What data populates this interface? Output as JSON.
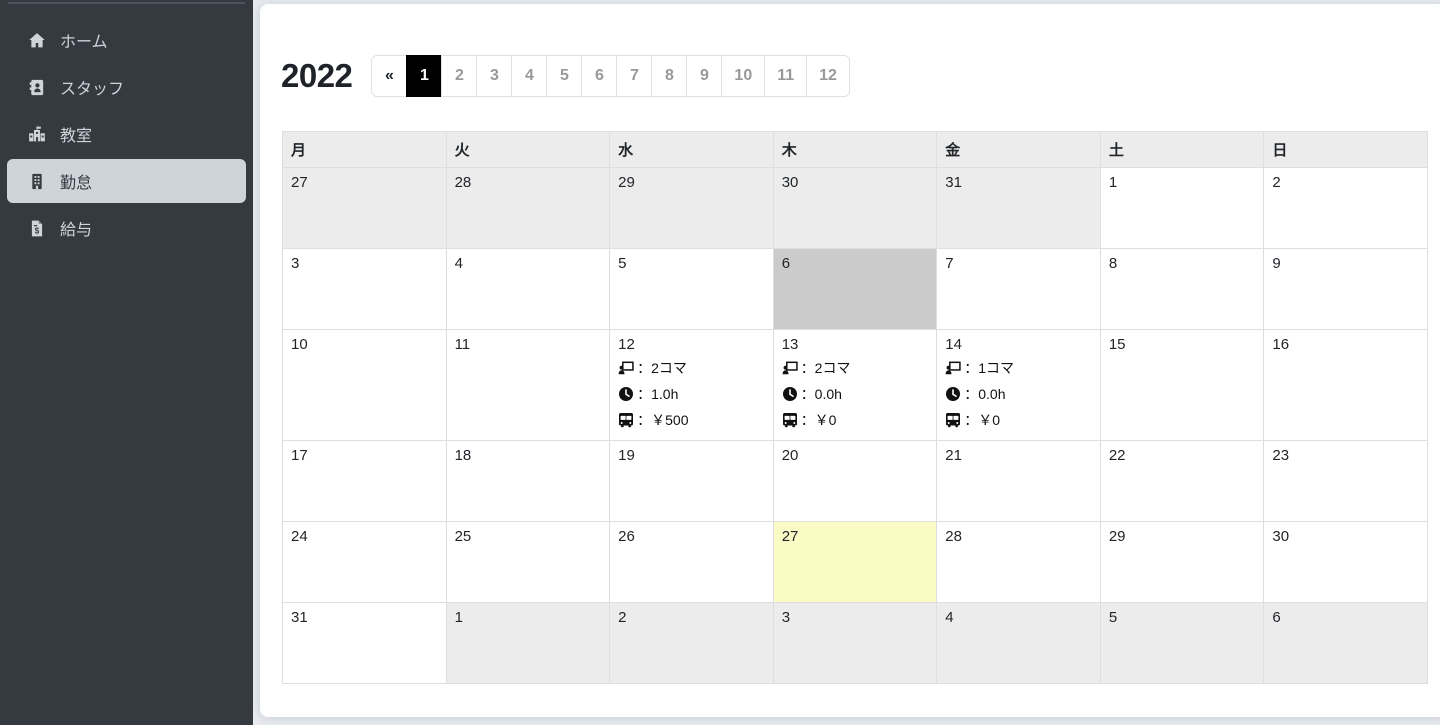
{
  "colors": {
    "sidebar_bg": "#343a40",
    "sidebar_active_item_bg": "#ced4da",
    "active_month_bg": "#000000",
    "active_month_text": "#ffffff",
    "today_cell_bg": "#fbfbc6",
    "selected_day_cell_bg": "#cbcbcb",
    "adjacent_month_cell_bg": "#ececec"
  },
  "sidebar": {
    "items": [
      {
        "id": "home",
        "label": "ホーム",
        "icon": "home-icon",
        "active": false
      },
      {
        "id": "staff",
        "label": "スタッフ",
        "icon": "address-book-icon",
        "active": false
      },
      {
        "id": "classroom",
        "label": "教室",
        "icon": "school-icon",
        "active": false
      },
      {
        "id": "attendance",
        "label": "勤怠",
        "icon": "building-icon",
        "active": true
      },
      {
        "id": "salary",
        "label": "給与",
        "icon": "file-invoice-dollar-icon",
        "active": false
      }
    ]
  },
  "main": {
    "year": "2022",
    "pagination": {
      "prev_label": "«",
      "months": [
        "1",
        "2",
        "3",
        "4",
        "5",
        "6",
        "7",
        "8",
        "9",
        "10",
        "11",
        "12"
      ],
      "active_month": "1"
    },
    "calendar": {
      "weekdays": [
        "月",
        "火",
        "水",
        "木",
        "金",
        "土",
        "日"
      ],
      "weeks": [
        [
          {
            "date": "27",
            "other": true
          },
          {
            "date": "28",
            "other": true
          },
          {
            "date": "29",
            "other": true
          },
          {
            "date": "30",
            "other": true
          },
          {
            "date": "31",
            "other": true
          },
          {
            "date": "1"
          },
          {
            "date": "2"
          }
        ],
        [
          {
            "date": "3"
          },
          {
            "date": "4"
          },
          {
            "date": "5"
          },
          {
            "date": "6",
            "highlight": "gray"
          },
          {
            "date": "7"
          },
          {
            "date": "8"
          },
          {
            "date": "9"
          }
        ],
        [
          {
            "date": "10"
          },
          {
            "date": "11"
          },
          {
            "date": "12",
            "entries": [
              {
                "icon": "chalkboard-teacher-icon",
                "text": "：2コマ"
              },
              {
                "icon": "clock-icon",
                "text": "：1.0h"
              },
              {
                "icon": "bus-icon",
                "text": "：￥500"
              }
            ]
          },
          {
            "date": "13",
            "entries": [
              {
                "icon": "chalkboard-teacher-icon",
                "text": "：2コマ"
              },
              {
                "icon": "clock-icon",
                "text": "：0.0h"
              },
              {
                "icon": "bus-icon",
                "text": "：￥0"
              }
            ]
          },
          {
            "date": "14",
            "entries": [
              {
                "icon": "chalkboard-teacher-icon",
                "text": "：1コマ"
              },
              {
                "icon": "clock-icon",
                "text": "：0.0h"
              },
              {
                "icon": "bus-icon",
                "text": "：￥0"
              }
            ]
          },
          {
            "date": "15"
          },
          {
            "date": "16"
          }
        ],
        [
          {
            "date": "17"
          },
          {
            "date": "18"
          },
          {
            "date": "19"
          },
          {
            "date": "20"
          },
          {
            "date": "21"
          },
          {
            "date": "22"
          },
          {
            "date": "23"
          }
        ],
        [
          {
            "date": "24"
          },
          {
            "date": "25"
          },
          {
            "date": "26"
          },
          {
            "date": "27",
            "highlight": "today"
          },
          {
            "date": "28"
          },
          {
            "date": "29"
          },
          {
            "date": "30"
          }
        ],
        [
          {
            "date": "31"
          },
          {
            "date": "1",
            "other": true
          },
          {
            "date": "2",
            "other": true
          },
          {
            "date": "3",
            "other": true
          },
          {
            "date": "4",
            "other": true
          },
          {
            "date": "5",
            "other": true
          },
          {
            "date": "6",
            "other": true
          }
        ]
      ]
    }
  }
}
